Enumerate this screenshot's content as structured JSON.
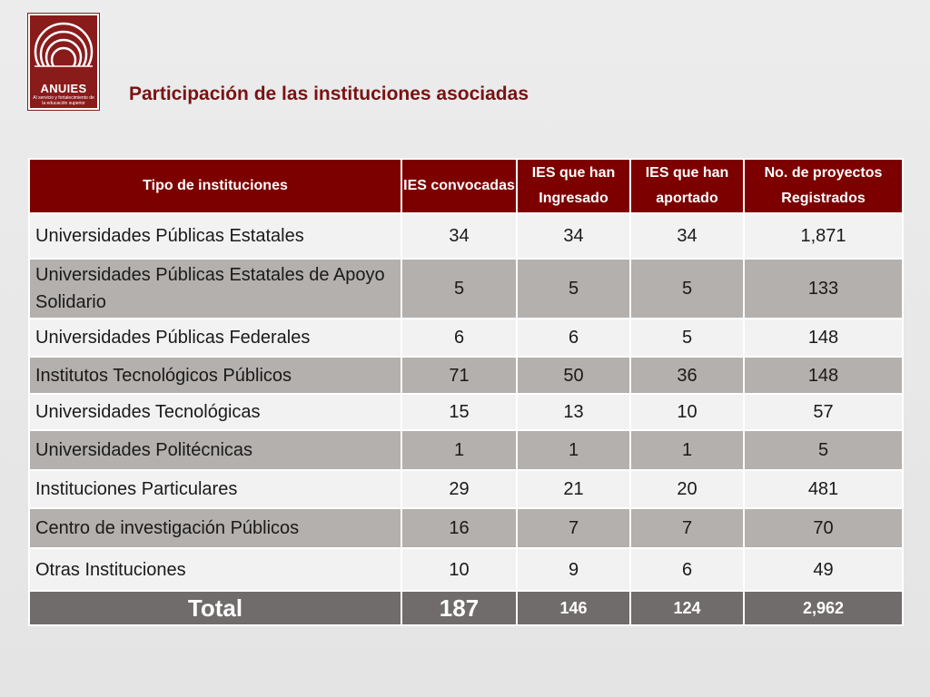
{
  "logo": {
    "name": "ANUIES",
    "tagline": "Al servicio y fortalecimiento de la educación superior"
  },
  "title": "Participación de las instituciones asociadas",
  "table": {
    "headers": [
      "Tipo de instituciones",
      "IES convocadas",
      "IES que han Ingresado",
      "IES que han aportado",
      "No. de proyectos Registrados"
    ],
    "rows": [
      [
        "Universidades Públicas Estatales",
        "34",
        "34",
        "34",
        "1,871"
      ],
      [
        "Universidades Públicas Estatales de Apoyo Solidario",
        "5",
        "5",
        "5",
        "133"
      ],
      [
        "Universidades Públicas Federales",
        "6",
        "6",
        "5",
        "148"
      ],
      [
        "Institutos Tecnológicos Públicos",
        "71",
        "50",
        "36",
        "148"
      ],
      [
        "Universidades Tecnológicas",
        "15",
        "13",
        "10",
        "57"
      ],
      [
        "Universidades Politécnicas",
        "1",
        "1",
        "1",
        "5"
      ],
      [
        "Instituciones Particulares",
        "29",
        "21",
        "20",
        "481"
      ],
      [
        "Centro de investigación Públicos",
        "16",
        "7",
        "7",
        "70"
      ],
      [
        "Otras Instituciones",
        "10",
        "9",
        "6",
        "49"
      ]
    ],
    "total": [
      "Total",
      "187",
      "146",
      "124",
      "2,962"
    ]
  },
  "colors": {
    "brand": "#7d0000",
    "title": "#7a1212",
    "row_light": "#f2f2f2",
    "row_dark": "#b3b0ae",
    "total_row": "#6f6c6b"
  }
}
